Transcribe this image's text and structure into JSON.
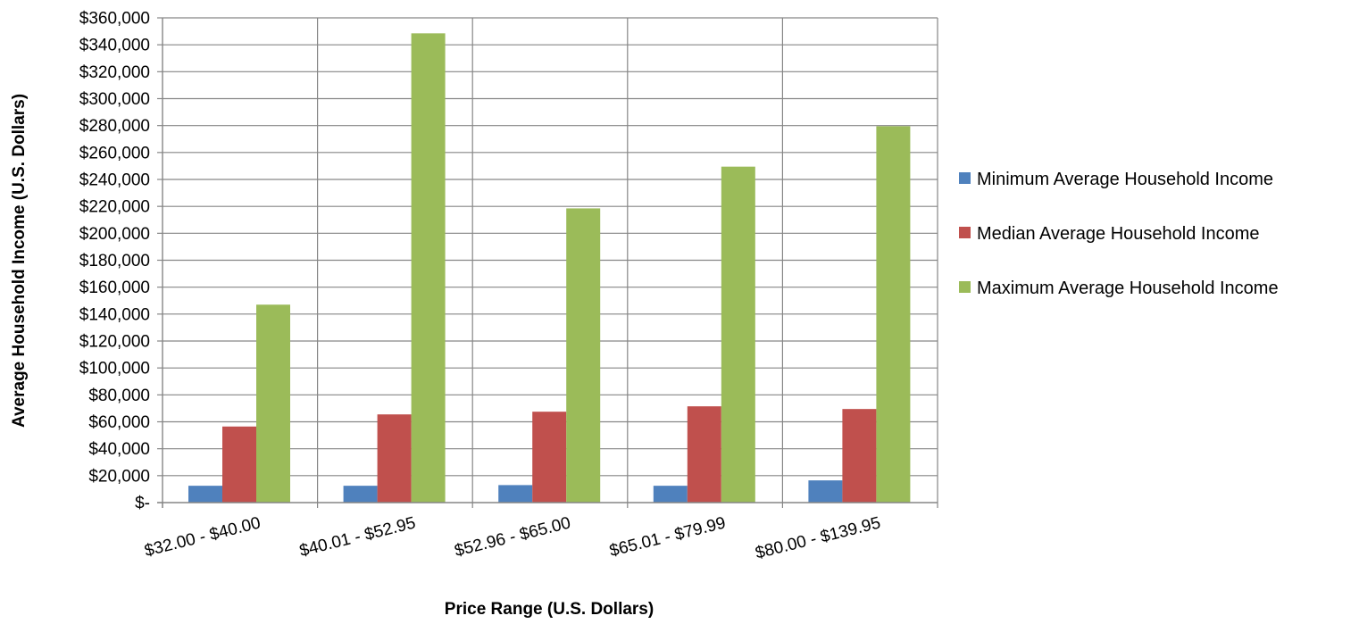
{
  "chart_data": {
    "type": "bar",
    "xlabel": "Price Range (U.S. Dollars)",
    "ylabel": "Average Household Income (U.S. Dollars)",
    "categories": [
      "$32.00 - $40.00",
      "$40.01 - $52.95",
      "$52.96 - $65.00",
      "$65.01 - $79.99",
      "$80.00 - $139.95"
    ],
    "series": [
      {
        "name": "Minimum Average Household Income",
        "color": "#4f81bd",
        "values": [
          12500,
          12500,
          13000,
          12500,
          16500
        ]
      },
      {
        "name": "Median Average Household Income",
        "color": "#c0504d",
        "values": [
          56500,
          65500,
          67500,
          71500,
          69500
        ]
      },
      {
        "name": "Maximum Average Household Income",
        "color": "#9bbb59",
        "values": [
          147000,
          348500,
          218500,
          249500,
          279500
        ]
      }
    ],
    "ylim": [
      0,
      360000
    ],
    "ytick_step": 20000,
    "ytick_labels": [
      "$-",
      "$20,000",
      "$40,000",
      "$60,000",
      "$80,000",
      "$100,000",
      "$120,000",
      "$140,000",
      "$160,000",
      "$180,000",
      "$200,000",
      "$220,000",
      "$240,000",
      "$260,000",
      "$280,000",
      "$300,000",
      "$320,000",
      "$340,000",
      "$360,000"
    ],
    "grid": {
      "horizontal": true,
      "vertical": true,
      "color": "#868686"
    },
    "legend_position": "right"
  }
}
